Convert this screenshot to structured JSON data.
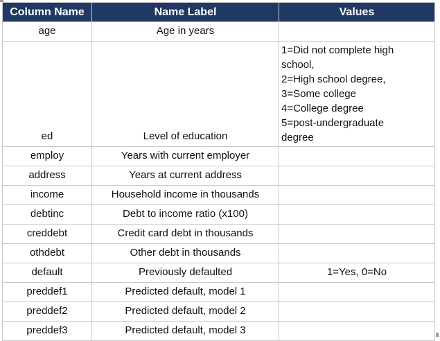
{
  "colors": {
    "header_bg": "#1F3864",
    "header_text": "#FFFFFF",
    "grid": "#C9C9C9",
    "body_text": "#111111"
  },
  "table": {
    "columns": [
      {
        "label": "Column Name"
      },
      {
        "label": "Name Label"
      },
      {
        "label": "Values"
      }
    ],
    "rows": [
      {
        "name": "age",
        "label": "Age in years",
        "values": ""
      },
      {
        "name": "ed",
        "label": "Level of education",
        "values": "1=Did not complete high\nschool,\n2=High school degree,\n3=Some college\n4=College degree\n5=post-undergraduate\ndegree"
      },
      {
        "name": "employ",
        "label": "Years with current employer",
        "values": ""
      },
      {
        "name": "address",
        "label": "Years at current address",
        "values": ""
      },
      {
        "name": "income",
        "label": "Household income in thousands",
        "values": ""
      },
      {
        "name": "debtinc",
        "label": "Debt to income ratio (x100)",
        "values": ""
      },
      {
        "name": "creddebt",
        "label": "Credit card debt in thousands",
        "values": ""
      },
      {
        "name": "othdebt",
        "label": "Other debt in thousands",
        "values": ""
      },
      {
        "name": "default",
        "label": "Previously defaulted",
        "values": "1=Yes, 0=No"
      },
      {
        "name": "preddef1",
        "label": "Predicted default, model 1",
        "values": ""
      },
      {
        "name": "preddef2",
        "label": "Predicted default, model 2",
        "values": ""
      },
      {
        "name": "preddef3",
        "label": "Predicted default, model 3",
        "values": ""
      }
    ]
  }
}
